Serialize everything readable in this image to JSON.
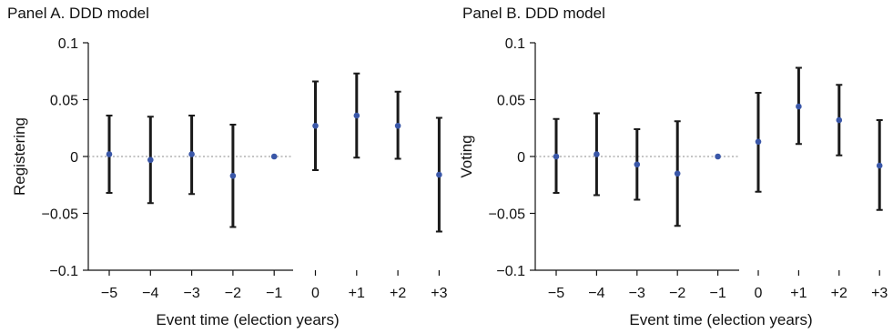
{
  "chart_data": [
    {
      "type": "scatter",
      "title": "Panel A. DDD model",
      "xlabel": "Event time (election years)",
      "ylabel": "Registering",
      "ylim": [
        -0.1,
        0.1
      ],
      "yticks": [
        0.1,
        0.05,
        0,
        -0.05,
        -0.1
      ],
      "ytick_labels": [
        "0.1",
        "0.05",
        "0",
        "−0.05",
        "−0.1"
      ],
      "categories": [
        "−5",
        "−4",
        "−3",
        "−2",
        "−1",
        "0",
        "+1",
        "+2",
        "+3"
      ],
      "estimates": [
        0.002,
        -0.003,
        0.002,
        -0.017,
        0.0,
        0.027,
        0.036,
        0.027,
        -0.016
      ],
      "ci_low": [
        -0.032,
        -0.041,
        -0.033,
        -0.062,
        0.0,
        -0.012,
        -0.001,
        -0.002,
        -0.066
      ],
      "ci_high": [
        0.036,
        0.035,
        0.036,
        0.028,
        0.0,
        0.066,
        0.073,
        0.057,
        0.034
      ],
      "grid": false,
      "zero_line": true,
      "point_color": "#3a57a8"
    },
    {
      "type": "scatter",
      "title": "Panel B. DDD model",
      "xlabel": "Event time (election years)",
      "ylabel": "Voting",
      "ylim": [
        -0.1,
        0.1
      ],
      "yticks": [
        0.1,
        0.05,
        0,
        -0.05,
        -0.1
      ],
      "ytick_labels": [
        "0.1",
        "0.05",
        "0",
        "−0.05",
        "−0.1"
      ],
      "categories": [
        "−5",
        "−4",
        "−3",
        "−2",
        "−1",
        "0",
        "+1",
        "+2",
        "+3"
      ],
      "estimates": [
        0.0,
        0.002,
        -0.007,
        -0.015,
        0.0,
        0.013,
        0.044,
        0.032,
        -0.008
      ],
      "ci_low": [
        -0.032,
        -0.034,
        -0.038,
        -0.061,
        0.0,
        -0.031,
        0.011,
        0.001,
        -0.047
      ],
      "ci_high": [
        0.033,
        0.038,
        0.024,
        0.031,
        0.0,
        0.056,
        0.078,
        0.063,
        0.032
      ],
      "grid": false,
      "zero_line": true,
      "point_color": "#3a57a8"
    }
  ]
}
